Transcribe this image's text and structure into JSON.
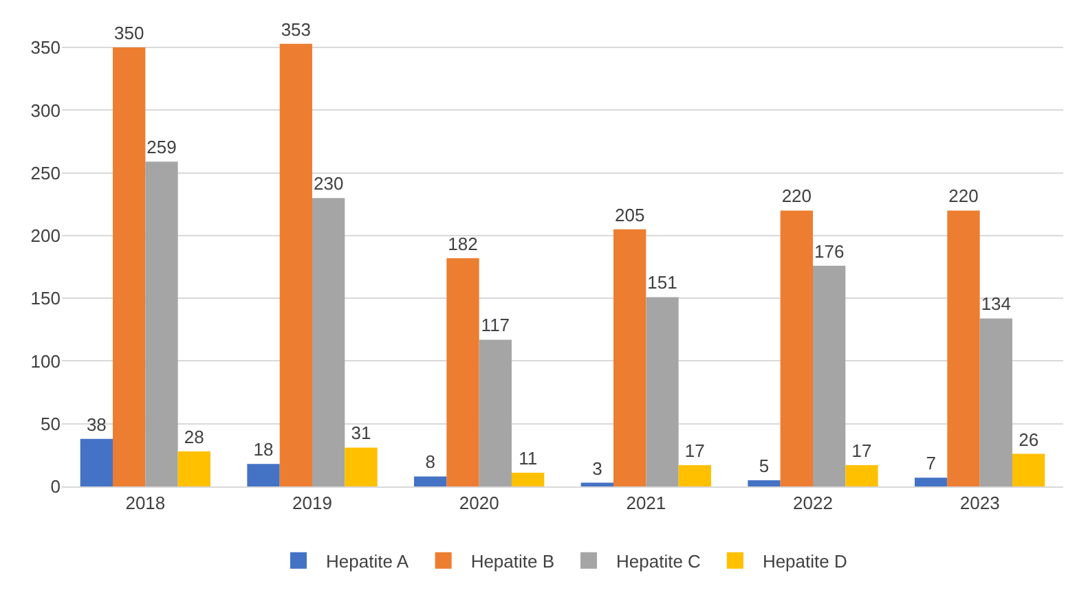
{
  "chart_data": {
    "type": "bar",
    "categories": [
      "2018",
      "2019",
      "2020",
      "2021",
      "2022",
      "2023"
    ],
    "series": [
      {
        "name": "Hepatite A",
        "color": "#4472c4",
        "values": [
          38,
          18,
          8,
          3,
          5,
          7
        ]
      },
      {
        "name": "Hepatite B",
        "color": "#ed7d31",
        "values": [
          350,
          353,
          182,
          205,
          220,
          220
        ]
      },
      {
        "name": "Hepatite C",
        "color": "#a5a5a5",
        "values": [
          259,
          230,
          117,
          151,
          176,
          134
        ]
      },
      {
        "name": "Hepatite D",
        "color": "#ffc000",
        "values": [
          28,
          31,
          11,
          17,
          17,
          26
        ]
      }
    ],
    "ylim": [
      0,
      355
    ],
    "yticks": [
      0,
      50,
      100,
      150,
      200,
      250,
      300,
      350
    ],
    "grid": "y",
    "legend": "bottom",
    "data_labels": true
  }
}
